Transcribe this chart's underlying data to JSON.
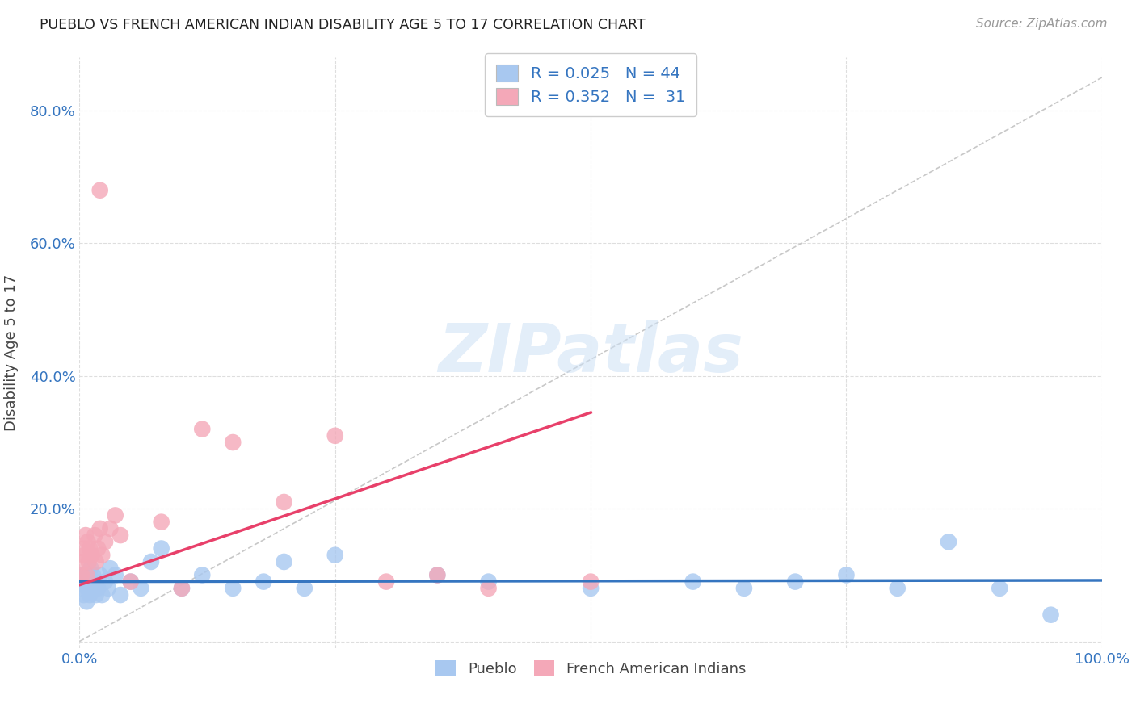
{
  "title": "PUEBLO VS FRENCH AMERICAN INDIAN DISABILITY AGE 5 TO 17 CORRELATION CHART",
  "source": "Source: ZipAtlas.com",
  "ylabel": "Disability Age 5 to 17",
  "xlim": [
    0,
    1.0
  ],
  "ylim": [
    -0.01,
    0.88
  ],
  "x_ticks": [
    0.0,
    0.25,
    0.5,
    0.75,
    1.0
  ],
  "x_tick_labels": [
    "0.0%",
    "",
    "",
    "",
    "100.0%"
  ],
  "y_ticks": [
    0.0,
    0.2,
    0.4,
    0.6,
    0.8
  ],
  "y_tick_labels": [
    "",
    "20.0%",
    "40.0%",
    "60.0%",
    "80.0%"
  ],
  "background_color": "#ffffff",
  "grid_color": "#dedede",
  "pueblo_color": "#a8c8f0",
  "french_color": "#f4a8b8",
  "pueblo_line_color": "#3575c0",
  "french_line_color": "#e8406a",
  "diagonal_color": "#c8c8c8",
  "R_pueblo": 0.025,
  "N_pueblo": 44,
  "R_french": 0.352,
  "N_french": 31,
  "legend_labels": [
    "Pueblo",
    "French American Indians"
  ],
  "watermark": "ZIPatlas",
  "pueblo_x": [
    0.002,
    0.003,
    0.004,
    0.005,
    0.006,
    0.007,
    0.008,
    0.009,
    0.01,
    0.011,
    0.012,
    0.013,
    0.015,
    0.016,
    0.018,
    0.02,
    0.022,
    0.025,
    0.028,
    0.03,
    0.035,
    0.04,
    0.05,
    0.06,
    0.07,
    0.08,
    0.1,
    0.12,
    0.15,
    0.18,
    0.2,
    0.22,
    0.25,
    0.35,
    0.4,
    0.5,
    0.6,
    0.65,
    0.7,
    0.75,
    0.8,
    0.85,
    0.9,
    0.95
  ],
  "pueblo_y": [
    0.08,
    0.1,
    0.07,
    0.09,
    0.1,
    0.06,
    0.08,
    0.09,
    0.07,
    0.11,
    0.08,
    0.1,
    0.09,
    0.07,
    0.08,
    0.1,
    0.07,
    0.09,
    0.08,
    0.11,
    0.1,
    0.07,
    0.09,
    0.08,
    0.12,
    0.14,
    0.08,
    0.1,
    0.08,
    0.09,
    0.12,
    0.08,
    0.13,
    0.1,
    0.09,
    0.08,
    0.09,
    0.08,
    0.09,
    0.1,
    0.08,
    0.15,
    0.08,
    0.04
  ],
  "french_x": [
    0.002,
    0.003,
    0.004,
    0.005,
    0.006,
    0.007,
    0.008,
    0.009,
    0.01,
    0.012,
    0.015,
    0.016,
    0.018,
    0.02,
    0.022,
    0.025,
    0.03,
    0.035,
    0.04,
    0.05,
    0.08,
    0.1,
    0.12,
    0.15,
    0.2,
    0.25,
    0.3,
    0.35,
    0.4,
    0.5,
    0.02
  ],
  "french_y": [
    0.1,
    0.12,
    0.14,
    0.13,
    0.16,
    0.1,
    0.15,
    0.12,
    0.14,
    0.13,
    0.16,
    0.12,
    0.14,
    0.17,
    0.13,
    0.15,
    0.17,
    0.19,
    0.16,
    0.09,
    0.18,
    0.08,
    0.32,
    0.3,
    0.21,
    0.31,
    0.09,
    0.1,
    0.08,
    0.09,
    0.68
  ],
  "pueblo_line_x": [
    0.0,
    1.0
  ],
  "pueblo_line_y": [
    0.09,
    0.092
  ],
  "french_line_x": [
    0.0,
    0.5
  ],
  "french_line_y": [
    0.085,
    0.345
  ]
}
